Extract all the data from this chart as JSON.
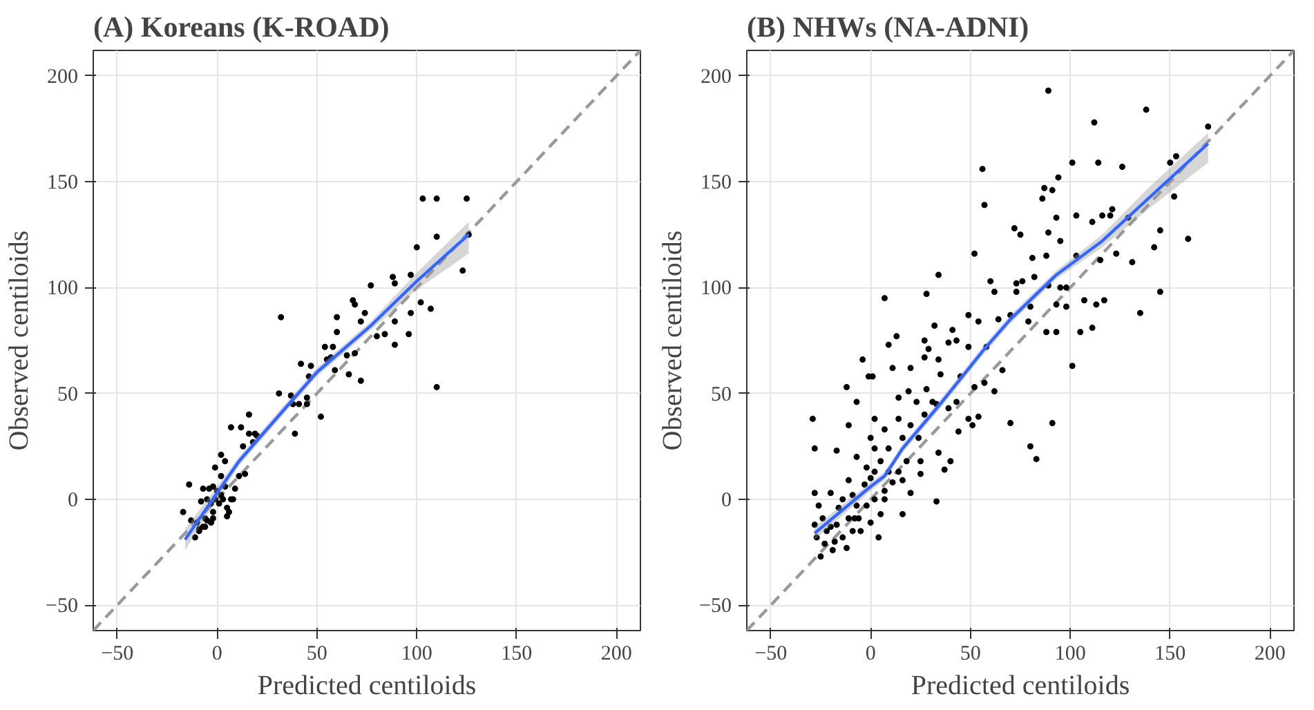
{
  "chart_data": [
    {
      "type": "scatter",
      "title": "(A) Koreans (K-ROAD)",
      "xlabel": "Predicted centiloids",
      "ylabel": "Observed centiloids",
      "xlim": [
        -62,
        212
      ],
      "ylim": [
        -62,
        212
      ],
      "xticks": [
        -50,
        0,
        50,
        100,
        150,
        200
      ],
      "yticks": [
        -50,
        0,
        50,
        100,
        150,
        200
      ],
      "grid": true,
      "series": [
        {
          "type": "line",
          "marker": "none",
          "color": "#999999",
          "line_style": "dashed",
          "x": [
            -62,
            212
          ],
          "values": [
            -62,
            212
          ]
        },
        {
          "marker": "circle",
          "color": "#000000",
          "x": [
            103,
            110,
            125,
            110,
            126,
            100,
            123,
            77,
            88,
            89,
            97,
            102,
            107,
            97,
            89,
            96,
            84,
            80,
            89,
            110,
            68,
            69,
            74,
            72,
            60,
            60,
            54,
            58,
            55,
            57,
            65,
            69,
            59,
            66,
            72,
            42,
            47,
            46,
            32,
            31,
            37,
            38,
            41,
            45,
            45,
            52,
            39,
            16,
            7,
            12,
            16,
            19,
            20,
            13,
            18,
            14,
            11,
            2,
            4,
            -1,
            2,
            -14,
            -7,
            -4,
            -2,
            0,
            4,
            9,
            -17,
            -8,
            -5,
            -3,
            -2,
            -1,
            1,
            2,
            3,
            5,
            6,
            5,
            7,
            8,
            -13,
            -10,
            -9,
            -7,
            -6,
            -5,
            -3,
            -2,
            -11,
            -9,
            -6
          ],
          "values": [
            142,
            142,
            142,
            124,
            125,
            119,
            108,
            101,
            105,
            102,
            106,
            93,
            90,
            88,
            84,
            78,
            78,
            77,
            73,
            53,
            94,
            92,
            88,
            84,
            86,
            79,
            72,
            72,
            66,
            67,
            68,
            69,
            61,
            59,
            56,
            64,
            63,
            58,
            86,
            50,
            49,
            45,
            45,
            48,
            45,
            39,
            31,
            40,
            34,
            34,
            31,
            31,
            30,
            25,
            27,
            12,
            11,
            21,
            18,
            15,
            11,
            7,
            5,
            5,
            6,
            4,
            6,
            5,
            -6,
            -1,
            0,
            -2,
            -6,
            0,
            -2,
            2,
            0,
            -4,
            -6,
            -8,
            0,
            0,
            -10,
            -11,
            -14,
            -13,
            -9,
            -10,
            -11,
            -9,
            -18,
            -15,
            -13
          ]
        },
        {
          "type": "line",
          "marker": "none",
          "color": "#3366ff",
          "x": [
            -16,
            0,
            11,
            36,
            50,
            77,
            100,
            126
          ],
          "values": [
            -19,
            3,
            18,
            45,
            60,
            82,
            103,
            125
          ],
          "lower": [
            -24,
            0,
            16,
            43,
            58,
            80,
            99,
            116
          ],
          "upper": [
            -14,
            6,
            20,
            47,
            62,
            84,
            107,
            131
          ]
        }
      ]
    },
    {
      "type": "scatter",
      "title": "(B) NHWs (NA-ADNI)",
      "xlabel": "Predicted centiloids",
      "ylabel": "Observed centiloids",
      "xlim": [
        -62,
        212
      ],
      "ylim": [
        -62,
        212
      ],
      "xticks": [
        -50,
        0,
        50,
        100,
        150,
        200
      ],
      "yticks": [
        -50,
        0,
        50,
        100,
        150,
        200
      ],
      "grid": true,
      "series": [
        {
          "type": "line",
          "marker": "none",
          "color": "#999999",
          "line_style": "dashed",
          "x": [
            -62,
            212
          ],
          "values": [
            -62,
            212
          ]
        },
        {
          "marker": "circle",
          "color": "#000000",
          "x": [
            89,
            138,
            112,
            169,
            101,
            114,
            126,
            153,
            150,
            56,
            94,
            87,
            91,
            86,
            57,
            152,
            93,
            103,
            111,
            116,
            121,
            120,
            129,
            72,
            75,
            89,
            145,
            159,
            52,
            81,
            88,
            95,
            103,
            115,
            123,
            131,
            142,
            34,
            60,
            73,
            76,
            82,
            89,
            95,
            98,
            145,
            28,
            7,
            62,
            73,
            80,
            93,
            98,
            107,
            113,
            117,
            135,
            105,
            111,
            93,
            88,
            79,
            70,
            64,
            54,
            49,
            41,
            43,
            49,
            32,
            27,
            13,
            9,
            -4,
            -1,
            1,
            -12,
            11,
            20,
            27,
            34,
            29,
            39,
            58,
            66,
            101,
            57,
            62,
            52,
            45,
            35,
            28,
            33,
            39,
            43,
            49,
            54,
            51,
            44,
            70,
            91,
            80,
            83,
            -29,
            -28,
            -11,
            -7,
            2,
            14,
            19,
            23,
            31,
            27,
            20,
            14,
            7,
            0,
            2,
            9,
            16,
            24,
            34,
            40,
            37,
            25,
            25,
            18,
            14,
            20,
            16,
            33,
            -17,
            -7,
            -2,
            5,
            9,
            -11,
            -20,
            -28,
            -26,
            -24,
            -20,
            -18,
            -25,
            -19,
            -12,
            -9,
            -6,
            -2,
            2,
            7,
            11,
            16,
            5,
            4,
            0,
            -5,
            -11,
            -16,
            -27,
            -28,
            -23,
            -14,
            -7,
            -9,
            -14,
            -3,
            0,
            2,
            7,
            -8,
            -17,
            -22
          ],
          "values": [
            193,
            184,
            178,
            176,
            159,
            159,
            157,
            162,
            159,
            156,
            152,
            147,
            146,
            142,
            139,
            143,
            133,
            134,
            131,
            134,
            137,
            134,
            133,
            128,
            125,
            126,
            127,
            123,
            116,
            114,
            115,
            122,
            115,
            113,
            116,
            112,
            119,
            106,
            103,
            102,
            103,
            105,
            101,
            100,
            100,
            98,
            97,
            95,
            98,
            98,
            91,
            92,
            91,
            94,
            92,
            94,
            88,
            79,
            81,
            79,
            79,
            84,
            87,
            85,
            84,
            87,
            80,
            75,
            72,
            82,
            75,
            77,
            73,
            66,
            58,
            58,
            53,
            62,
            62,
            67,
            66,
            71,
            74,
            72,
            61,
            63,
            55,
            51,
            53,
            58,
            59,
            52,
            45,
            43,
            46,
            38,
            39,
            35,
            32,
            36,
            36,
            25,
            19,
            38,
            24,
            35,
            46,
            38,
            48,
            51,
            46,
            46,
            40,
            35,
            38,
            33,
            29,
            24,
            24,
            29,
            29,
            22,
            18,
            14,
            18,
            12,
            18,
            13,
            3,
            -7,
            -1,
            23,
            20,
            15,
            18,
            13,
            9,
            3,
            3,
            -3,
            -9,
            -13,
            -20,
            -27,
            -24,
            -23,
            -15,
            -9,
            -3,
            0,
            4,
            8,
            9,
            -7,
            -18,
            -11,
            -15,
            -9,
            -4,
            -18,
            -12,
            -21,
            -18,
            -3,
            2,
            0,
            7,
            10,
            13,
            0,
            -9,
            -12,
            -15
          ]
        },
        {
          "type": "line",
          "marker": "none",
          "color": "#3366ff",
          "x": [
            -28,
            0,
            7,
            16,
            34,
            57,
            70,
            93,
            116,
            139,
            169
          ],
          "values": [
            -16,
            6,
            11,
            24,
            44,
            71,
            85,
            106,
            122,
            142,
            168
          ],
          "lower": [
            -19,
            4,
            9,
            22,
            42,
            69,
            83,
            104,
            119,
            137,
            159
          ],
          "upper": [
            -13,
            8,
            13,
            26,
            46,
            73,
            87,
            108,
            125,
            147,
            173
          ]
        }
      ]
    }
  ]
}
